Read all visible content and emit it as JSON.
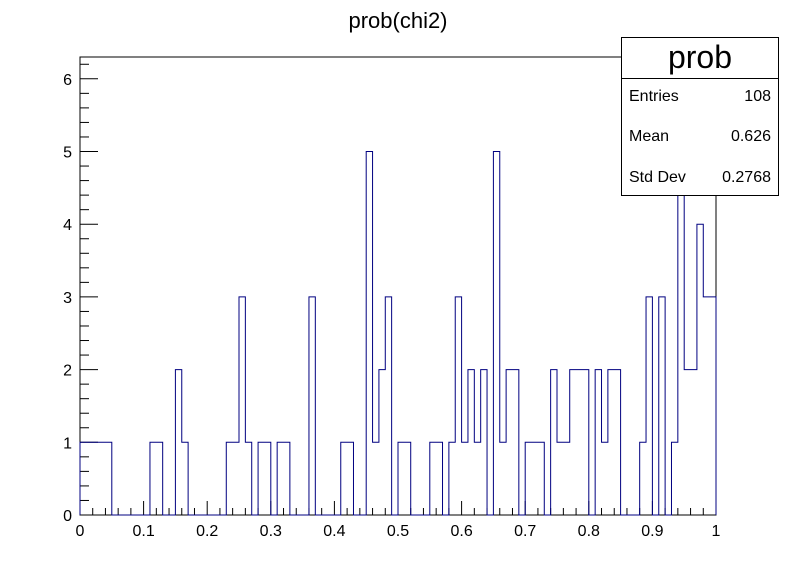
{
  "chart_data": {
    "type": "histogram",
    "title": "prob(chi2)",
    "xlim": [
      0,
      1
    ],
    "ylim": [
      0,
      6.3
    ],
    "bin_width": 0.01,
    "x_ticks": [
      "0",
      "0.1",
      "0.2",
      "0.3",
      "0.4",
      "0.5",
      "0.6",
      "0.7",
      "0.8",
      "0.9",
      "1"
    ],
    "y_ticks": [
      "0",
      "1",
      "2",
      "3",
      "4",
      "5",
      "6"
    ],
    "values": [
      1,
      1,
      1,
      1,
      1,
      0,
      0,
      0,
      0,
      0,
      0,
      1,
      1,
      0,
      0,
      2,
      1,
      0,
      0,
      0,
      0,
      0,
      0,
      1,
      1,
      3,
      1,
      0,
      1,
      1,
      0,
      1,
      1,
      0,
      0,
      0,
      3,
      0,
      0,
      0,
      0,
      1,
      1,
      0,
      0,
      5,
      1,
      2,
      3,
      0,
      1,
      1,
      0,
      0,
      0,
      1,
      1,
      0,
      1,
      3,
      1,
      2,
      1,
      2,
      0,
      5,
      1,
      2,
      2,
      0,
      1,
      1,
      1,
      0,
      2,
      1,
      1,
      2,
      2,
      2,
      0,
      2,
      1,
      2,
      2,
      0,
      0,
      0,
      1,
      3,
      0,
      3,
      0,
      1,
      6,
      2,
      2,
      4,
      3,
      3
    ],
    "line_color": "#000080",
    "stats_box": {
      "title": "prob",
      "entries_label": "Entries",
      "entries": "108",
      "mean_label": "Mean",
      "mean": "0.626",
      "stddev_label": "Std Dev",
      "stddev": "0.2768"
    }
  }
}
